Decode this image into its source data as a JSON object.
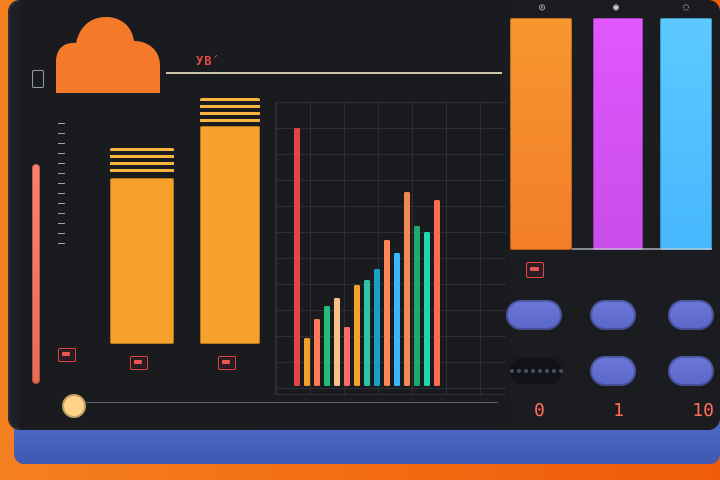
{
  "app": {
    "brand_text": "УВ́",
    "top_badges": [
      "◎",
      "◉",
      "◌"
    ],
    "numbers": [
      "0",
      "1",
      "10"
    ]
  },
  "left_scale": {
    "ticks": [
      "",
      "",
      "",
      "",
      "",
      "",
      "",
      "",
      "",
      "",
      "",
      "",
      ""
    ]
  },
  "bottom_axis": {
    "items": [
      "",
      "",
      "",
      "",
      "",
      "",
      "",
      "",
      "",
      "",
      "",
      "",
      "",
      "",
      "",
      "",
      "",
      "",
      ""
    ]
  },
  "plot": {
    "series": [
      {
        "color": "#e24545",
        "x": 0,
        "value": 0.97
      },
      {
        "color": "#f2a12b",
        "x": 1,
        "value": 0.18
      },
      {
        "color": "#ff7a58",
        "x": 2,
        "value": 0.25
      },
      {
        "color": "#1fbf7a",
        "x": 3,
        "value": 0.3
      },
      {
        "color": "#f7c188",
        "x": 4,
        "value": 0.33
      },
      {
        "color": "#ff6a6a",
        "x": 5,
        "value": 0.22
      },
      {
        "color": "#f6a12b",
        "x": 6,
        "value": 0.38
      },
      {
        "color": "#2cc6a7",
        "x": 7,
        "value": 0.4
      },
      {
        "color": "#19a0c5",
        "x": 8,
        "value": 0.44
      },
      {
        "color": "#ff8757",
        "x": 9,
        "value": 0.55
      },
      {
        "color": "#38b7ff",
        "x": 10,
        "value": 0.5
      },
      {
        "color": "#f08a52",
        "x": 11,
        "value": 0.73
      },
      {
        "color": "#1ea96f",
        "x": 12,
        "value": 0.6
      },
      {
        "color": "#22d6b0",
        "x": 13,
        "value": 0.58
      },
      {
        "color": "#ff6b4f",
        "x": 14,
        "value": 0.7
      }
    ]
  },
  "colors": {
    "accent_orange": "#f58020",
    "panel_bg": "#1f2025",
    "right_orange": "#f8962e",
    "right_magenta": "#e157ff",
    "right_cyan": "#5cc9ff",
    "pill_blue": "#6b78d9",
    "number_red": "#ff6b5a"
  }
}
